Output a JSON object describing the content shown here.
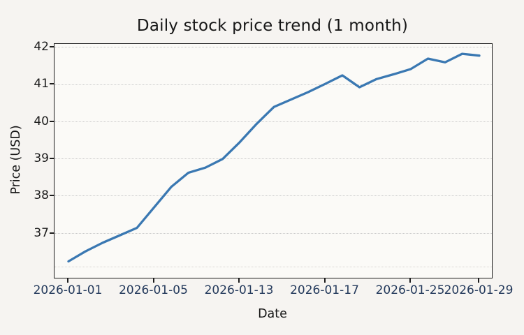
{
  "chart_data": {
    "type": "line",
    "title": "Daily stock price trend (1 month)",
    "xlabel": "Date",
    "ylabel": "Price (USD)",
    "ylim": [
      35.8,
      42.1
    ],
    "grid": "horizontal-dotted",
    "legend": "none",
    "line_color": "#3a78b2",
    "y_ticks": [
      37,
      38,
      39,
      40,
      41,
      42
    ],
    "extra_unlabeled_gridline": 36.1,
    "x_tick_indices": [
      0,
      5,
      10,
      15,
      20,
      24
    ],
    "x_tick_labels": [
      "2026-01-01",
      "2026-01-05",
      "2026-01-13",
      "2026-01-17",
      "2026-01-25",
      "2026-01-29"
    ],
    "last_x_tick_truncated_display": "2026-01",
    "series": [
      {
        "name": "price",
        "x_index": [
          0,
          1,
          2,
          3,
          4,
          5,
          6,
          7,
          8,
          9,
          10,
          11,
          12,
          13,
          14,
          15,
          16,
          17,
          18,
          19,
          20,
          21,
          22,
          23,
          24
        ],
        "values": [
          36.25,
          36.52,
          36.75,
          36.95,
          37.15,
          37.7,
          38.25,
          38.63,
          38.77,
          39.0,
          39.45,
          39.95,
          40.4,
          40.6,
          40.8,
          41.02,
          41.25,
          40.93,
          41.15,
          41.28,
          41.42,
          41.7,
          41.6,
          41.83,
          41.78
        ]
      }
    ]
  }
}
